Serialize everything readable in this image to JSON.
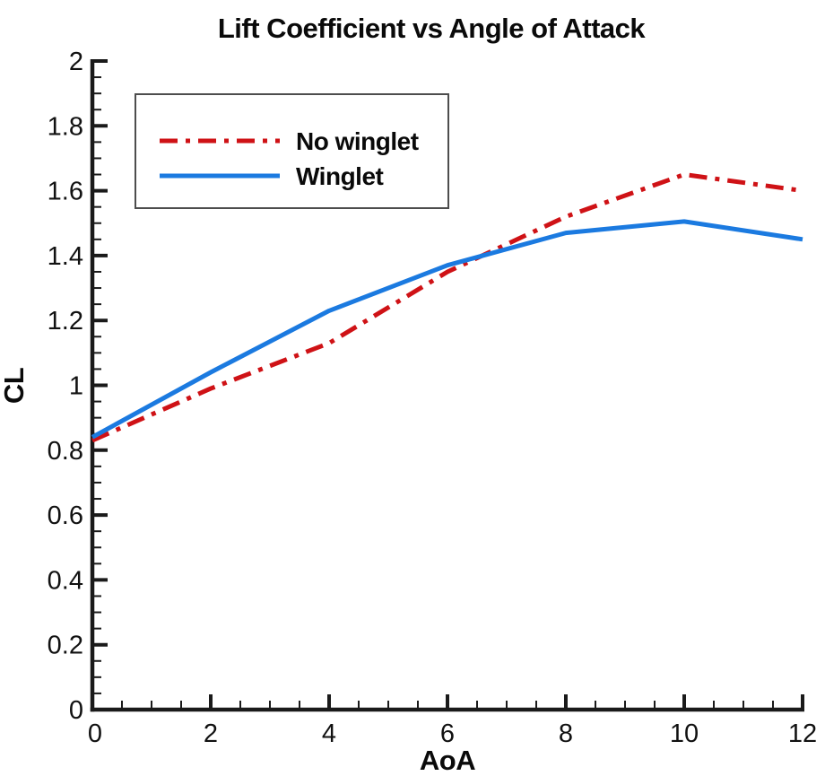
{
  "page": {
    "background_color": "#ffffff",
    "axis_color": "#1a1a1a",
    "legend_border_color": "#4d4d4d"
  },
  "chart_data": {
    "type": "line",
    "title": "Lift Coefficient vs Angle of Attack",
    "xlabel": "AoA",
    "ylabel": "CL",
    "xlim": [
      0,
      12
    ],
    "ylim": [
      0,
      2
    ],
    "grid": false,
    "legend_position": "upper-left",
    "x_major_ticks": [
      0,
      2,
      4,
      6,
      8,
      10,
      12
    ],
    "x_tick_labels": [
      "0",
      "2",
      "4",
      "6",
      "8",
      "10",
      "12"
    ],
    "y_major_ticks": [
      0,
      0.2,
      0.4,
      0.6,
      0.8,
      1,
      1.2,
      1.4,
      1.6,
      1.8,
      2
    ],
    "y_tick_labels": [
      "0",
      "0.2",
      "0.4",
      "0.6",
      "0.8",
      "1",
      "1.2",
      "1.4",
      "1.6",
      "1.8",
      "2"
    ],
    "minor_divisions": 4,
    "x": [
      0,
      2,
      4,
      6,
      8,
      10,
      12
    ],
    "series": [
      {
        "name": "No winglet",
        "color": "#cf1216",
        "style": "dash-dot",
        "values": [
          0.83,
          0.99,
          1.13,
          1.35,
          1.52,
          1.65,
          1.6
        ]
      },
      {
        "name": "Winglet",
        "color": "#1b7ae0",
        "style": "solid",
        "values": [
          0.84,
          1.04,
          1.23,
          1.37,
          1.47,
          1.505,
          1.45
        ]
      }
    ]
  }
}
